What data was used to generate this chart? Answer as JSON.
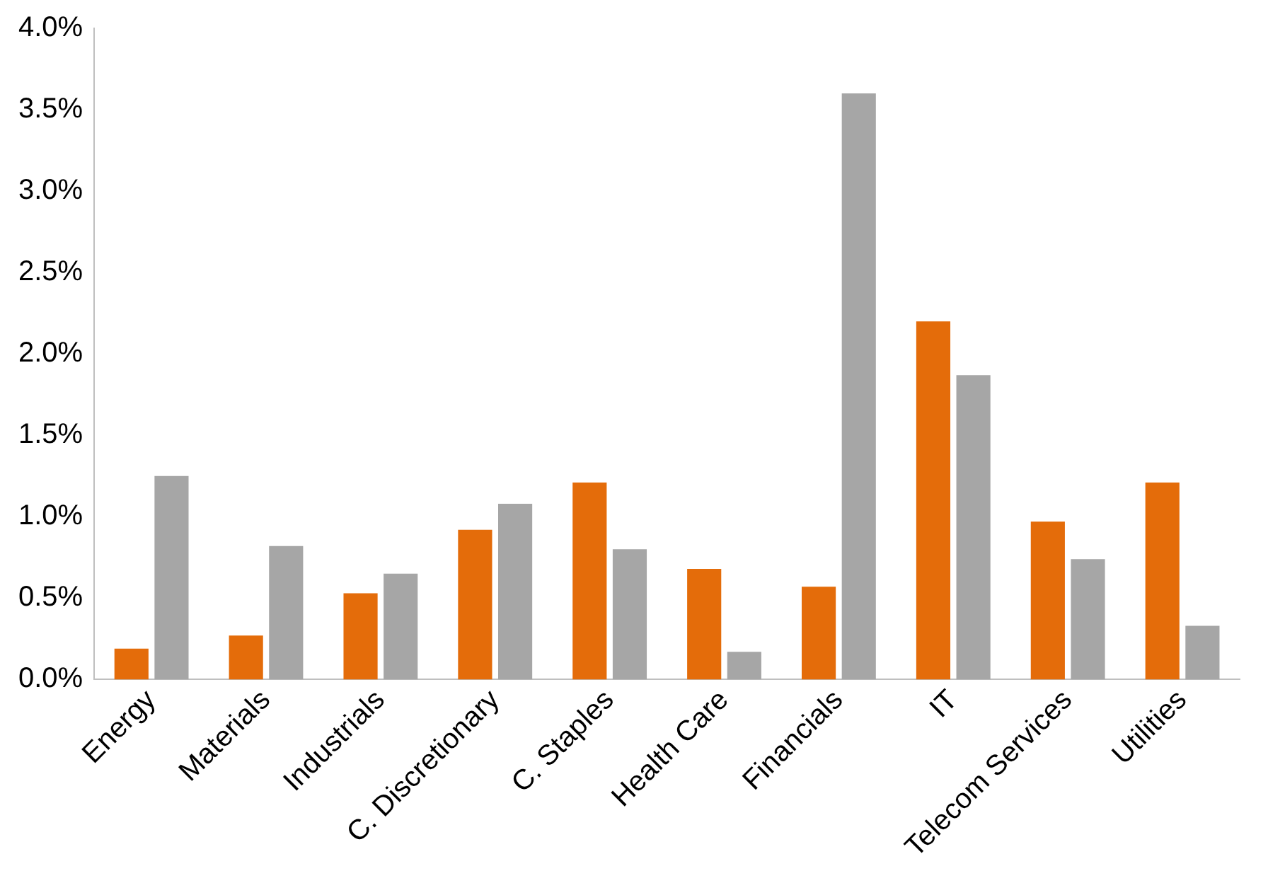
{
  "chart_data": {
    "type": "bar",
    "categories": [
      "Energy",
      "Materials",
      "Industrials",
      "C. Discretionary",
      "C. Staples",
      "Health Care",
      "Financials",
      "IT",
      "Telecom Services",
      "Utilities"
    ],
    "series": [
      {
        "color": "#e46c0a",
        "values": [
          0.19,
          0.27,
          0.53,
          0.92,
          1.21,
          0.68,
          0.57,
          2.2,
          0.97,
          1.21
        ]
      },
      {
        "color": "#a6a6a6",
        "values": [
          1.25,
          0.82,
          0.65,
          1.08,
          0.8,
          0.17,
          3.6,
          1.87,
          0.74,
          0.33
        ]
      }
    ],
    "ylim": [
      0,
      4
    ],
    "yticks": [
      {
        "value": 0,
        "label": "0.0%"
      },
      {
        "value": 0.5,
        "label": "0.5%"
      },
      {
        "value": 1,
        "label": "1.0%"
      },
      {
        "value": 1.5,
        "label": "1.5%"
      },
      {
        "value": 2,
        "label": "2.0%"
      },
      {
        "value": 2.5,
        "label": "2.5%"
      },
      {
        "value": 3,
        "label": "3.0%"
      },
      {
        "value": 3.5,
        "label": "3.5%"
      },
      {
        "value": 4,
        "label": "4.0%"
      }
    ],
    "grid": false
  }
}
